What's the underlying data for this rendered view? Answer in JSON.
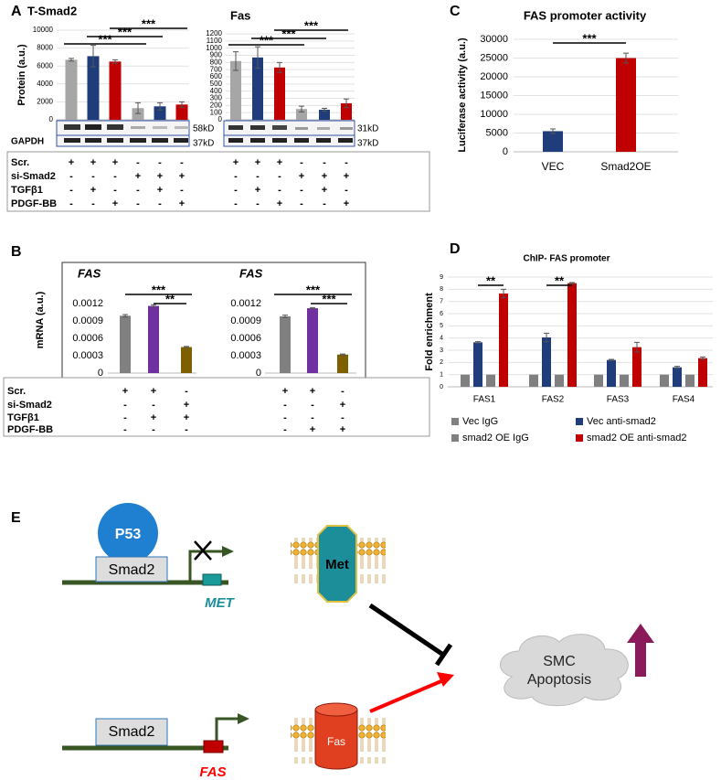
{
  "chart_data": [
    {
      "type": "bar",
      "panel": "A",
      "title": "T-Smad2",
      "y_label": "Protein (a.u.)",
      "categories": [
        null,
        null,
        null,
        null,
        null,
        null
      ],
      "values": [
        6700,
        7100,
        6500,
        1300,
        1500,
        1700
      ],
      "errors": [
        150,
        1200,
        200,
        600,
        400,
        300
      ],
      "colors": [
        "#a6a6a6",
        "#1f3d7a",
        "#c00000",
        "#a6a6a6",
        "#1f3d7a",
        "#c00000"
      ],
      "ylim": [
        0,
        10000
      ],
      "yticks": [
        0,
        2000,
        4000,
        6000,
        8000,
        10000
      ],
      "grid": true,
      "annotations": [
        "***",
        "***",
        "***"
      ],
      "blot_labels": [
        "58kD",
        "GAPDH",
        "37kD"
      ]
    },
    {
      "type": "bar",
      "title": "Fas",
      "categories": [
        null,
        null,
        null,
        null,
        null,
        null
      ],
      "values": [
        820,
        870,
        730,
        150,
        140,
        230
      ],
      "errors": [
        130,
        150,
        70,
        40,
        20,
        60
      ],
      "colors": [
        "#a6a6a6",
        "#1f3d7a",
        "#c00000",
        "#a6a6a6",
        "#1f3d7a",
        "#c00000"
      ],
      "ylim": [
        0,
        1200
      ],
      "yticks": [
        0,
        100,
        200,
        300,
        400,
        500,
        600,
        700,
        800,
        900,
        1000,
        1100,
        1200
      ],
      "grid": true,
      "annotations": [
        "***",
        "***",
        "***"
      ],
      "blot_labels": [
        "31kD",
        "37kD"
      ]
    },
    {
      "type": "bar",
      "panel": "C",
      "title": "FAS promoter activity",
      "y_label": "Luciferase activity (a.u.)",
      "categories": [
        "VEC",
        "Smad2OE"
      ],
      "values": [
        5500,
        25000
      ],
      "errors": [
        600,
        1300
      ],
      "colors": [
        "#1f3d7a",
        "#c00000"
      ],
      "ylim": [
        0,
        30000
      ],
      "yticks": [
        0,
        5000,
        10000,
        15000,
        20000,
        25000,
        30000
      ],
      "grid": true,
      "annotations": [
        "***"
      ]
    },
    {
      "type": "bar",
      "panel": "B",
      "title": "FAS",
      "y_label": "mRNA (a.u.)",
      "categories": [
        null,
        null,
        null
      ],
      "values": [
        0.00099,
        0.00116,
        0.00045
      ],
      "errors": [
        2e-05,
        2e-05,
        1e-05
      ],
      "colors": [
        "#808080",
        "#7030a0",
        "#7f6000"
      ],
      "ylim": [
        0,
        0.0015
      ],
      "yticks": [
        0,
        0.0003,
        0.0006,
        0.0009,
        0.0012
      ],
      "grid": false,
      "annotations": [
        "***",
        "**"
      ]
    },
    {
      "type": "bar",
      "title": "FAS",
      "categories": [
        null,
        null,
        null
      ],
      "values": [
        0.00098,
        0.00112,
        0.00032
      ],
      "errors": [
        2e-05,
        1e-05,
        1e-05
      ],
      "colors": [
        "#808080",
        "#7030a0",
        "#7f6000"
      ],
      "ylim": [
        0,
        0.0015
      ],
      "yticks": [
        0,
        0.0003,
        0.0006,
        0.0009,
        0.0012
      ],
      "grid": false,
      "annotations": [
        "***",
        "***"
      ]
    },
    {
      "type": "bar",
      "panel": "D",
      "title": "ChIP- FAS promoter",
      "y_label": "Fold enrichment",
      "categories": [
        "FAS1",
        "FAS2",
        "FAS3",
        "FAS4"
      ],
      "series": [
        {
          "name": "Vec IgG",
          "color": "#808080",
          "values": [
            1,
            1,
            1,
            1
          ]
        },
        {
          "name": "Vec anti-smad2",
          "color": "#1f3d7a",
          "values": [
            3.65,
            4.05,
            2.2,
            1.6
          ],
          "errors": [
            0.05,
            0.35,
            0.05,
            0.08
          ]
        },
        {
          "name": "smad2 OE IgG",
          "color": "#808080",
          "values": [
            1,
            1,
            1,
            1
          ]
        },
        {
          "name": "smad2 OE anti-smad2",
          "color": "#c00000",
          "values": [
            7.65,
            8.5,
            3.25,
            2.35
          ],
          "errors": [
            0.35,
            0.05,
            0.4,
            0.1
          ]
        }
      ],
      "ylim": [
        0,
        9
      ],
      "yticks": [
        0,
        1,
        2,
        3,
        4,
        5,
        6,
        7,
        8,
        9
      ],
      "grid": true,
      "annotations": [
        "**",
        "**"
      ]
    }
  ],
  "tables": [
    {
      "rows": [
        {
          "label": "Scr.",
          "signs": [
            "+",
            "+",
            "+",
            "-",
            "-",
            "-",
            "+",
            "+",
            "+",
            "-",
            "-",
            "-"
          ]
        },
        {
          "label": "si-Smad2",
          "signs": [
            "-",
            "-",
            "-",
            "+",
            "+",
            "+",
            "-",
            "-",
            "-",
            "+",
            "+",
            "+"
          ]
        },
        {
          "label": "TGFβ1",
          "signs": [
            "-",
            "+",
            "-",
            "-",
            "+",
            "-",
            "-",
            "+",
            "-",
            "-",
            "+",
            "-"
          ]
        },
        {
          "label": "PDGF-BB",
          "signs": [
            "-",
            "-",
            "+",
            "-",
            "-",
            "+",
            "-",
            "-",
            "+",
            "-",
            "-",
            "+"
          ]
        }
      ]
    },
    {
      "rows": [
        {
          "label": "Scr.",
          "signs": [
            "+",
            "+",
            "-",
            "+",
            "+",
            "-"
          ]
        },
        {
          "label": "si-Smad2",
          "signs": [
            "-",
            "-",
            "+",
            "-",
            "-",
            "+"
          ]
        },
        {
          "label": "TGFβ1",
          "signs": [
            "-",
            "+",
            "+",
            "-",
            "-",
            "-"
          ]
        },
        {
          "label": "PDGF-BB",
          "signs": [
            "-",
            "-",
            "-",
            "-",
            "+",
            "+"
          ]
        }
      ]
    }
  ],
  "diagram": {
    "label": "E",
    "p53": "P53",
    "smad2_top": "Smad2",
    "met_gene": "MET",
    "met_protein": "Met",
    "outcome_1": "SMC",
    "outcome_2": "Apoptosis",
    "smad2_bottom": "Smad2",
    "fas_protein": "Fas",
    "fas_gene": "FAS"
  }
}
